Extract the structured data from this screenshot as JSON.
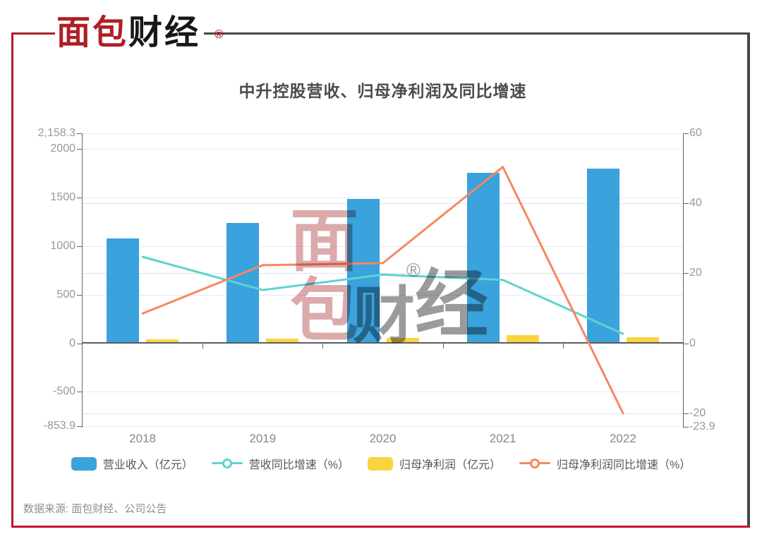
{
  "logo": {
    "brand_red": "面包",
    "brand_black": "财经",
    "registered_mark": "®"
  },
  "chart_data": {
    "type": "bar",
    "subtype": "combo-bar-line-dual-axis",
    "title": "中升控股营收、归母净利润及同比增速",
    "categories": [
      "2018",
      "2019",
      "2020",
      "2021",
      "2022"
    ],
    "series": [
      {
        "key": "revenue",
        "name": "营业收入（亿元）",
        "type": "bar",
        "axis": "left",
        "color": "#3aa2dc",
        "values": [
          1076.9,
          1240.4,
          1483.2,
          1751.3,
          1798.6
        ]
      },
      {
        "key": "revenue-growth",
        "name": "营收同比增速（%）",
        "type": "line",
        "axis": "right",
        "color": "#5ed3d0",
        "values": [
          24.7,
          15.2,
          19.6,
          18.1,
          2.7
        ]
      },
      {
        "key": "net-profit",
        "name": "归母净利润（亿元）",
        "type": "bar",
        "axis": "left",
        "color": "#fad43f",
        "values": [
          36.8,
          45.0,
          55.3,
          83.1,
          60.9
        ]
      },
      {
        "key": "net-profit-growth",
        "name": "归母净利润同比增速（%）",
        "type": "line",
        "axis": "right",
        "color": "#f7875f",
        "values": [
          8.5,
          22.3,
          22.9,
          50.4,
          -20.0
        ]
      }
    ],
    "left_axis": {
      "max": 2158.3,
      "min": -853.9,
      "grid_values": [
        2158.3,
        2000,
        1500,
        1000,
        500,
        -500,
        -853.9
      ],
      "ticks": [
        {
          "label": "2,158.3",
          "value": 2158.3
        },
        {
          "label": "2000",
          "value": 2000
        },
        {
          "label": "1500",
          "value": 1500
        },
        {
          "label": "1000",
          "value": 1000
        },
        {
          "label": "500",
          "value": 500
        },
        {
          "label": "0",
          "value": 0
        },
        {
          "label": "-500",
          "value": -500
        },
        {
          "label": "-853.9",
          "value": -853.9
        }
      ]
    },
    "right_axis": {
      "max": 60,
      "min": -23.9,
      "grid_values": [
        40,
        20,
        -20
      ],
      "ticks": [
        {
          "label": "60",
          "value": 60
        },
        {
          "label": "40",
          "value": 40
        },
        {
          "label": "20",
          "value": 20
        },
        {
          "label": "0",
          "value": 0
        },
        {
          "label": "-20",
          "value": -20
        },
        {
          "label": "-23.9",
          "value": -23.9
        }
      ]
    },
    "legend_position": "bottom",
    "grid": true
  },
  "watermark": {
    "chars": [
      "面",
      "包",
      "财",
      "经"
    ],
    "registered_mark": "®"
  },
  "source_note": "数据来源: 面包财经、公司公告",
  "colors": {
    "brand_red": "#ae1f26",
    "frame_gray": "#45474b",
    "axis_line": "#63666c",
    "grid_line": "#e4ebf6"
  }
}
